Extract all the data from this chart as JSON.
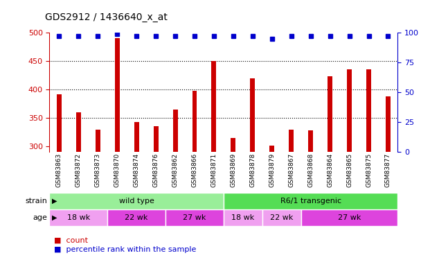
{
  "title": "GDS2912 / 1436640_x_at",
  "samples": [
    "GSM83863",
    "GSM83872",
    "GSM83873",
    "GSM83870",
    "GSM83874",
    "GSM83876",
    "GSM83862",
    "GSM83866",
    "GSM83871",
    "GSM83869",
    "GSM83878",
    "GSM83879",
    "GSM83867",
    "GSM83868",
    "GSM83864",
    "GSM83865",
    "GSM83875",
    "GSM83877"
  ],
  "counts": [
    392,
    360,
    330,
    490,
    343,
    335,
    365,
    398,
    450,
    315,
    420,
    302,
    330,
    328,
    423,
    435,
    435,
    388
  ],
  "percentile_ranks": [
    97,
    97,
    97,
    99,
    97,
    97,
    97,
    97,
    97,
    97,
    97,
    95,
    97,
    97,
    97,
    97,
    97,
    97
  ],
  "bar_color": "#cc0000",
  "dot_color": "#0000cc",
  "ylim_left": [
    290,
    500
  ],
  "ylim_right": [
    0,
    100
  ],
  "yticks_left": [
    300,
    350,
    400,
    450,
    500
  ],
  "yticks_right": [
    0,
    25,
    50,
    75,
    100
  ],
  "grid_values": [
    350,
    400,
    450
  ],
  "bar_width": 0.25,
  "strain_groups": [
    {
      "label": "wild type",
      "start": 0,
      "end": 9,
      "color": "#99ee99"
    },
    {
      "label": "R6/1 transgenic",
      "start": 9,
      "end": 18,
      "color": "#55dd55"
    }
  ],
  "age_groups": [
    {
      "label": "18 wk",
      "start": 0,
      "end": 3,
      "color": "#f0a0f0"
    },
    {
      "label": "22 wk",
      "start": 3,
      "end": 6,
      "color": "#dd44dd"
    },
    {
      "label": "27 wk",
      "start": 6,
      "end": 9,
      "color": "#dd44dd"
    },
    {
      "label": "18 wk",
      "start": 9,
      "end": 11,
      "color": "#f0a0f0"
    },
    {
      "label": "22 wk",
      "start": 11,
      "end": 13,
      "color": "#f0a0f0"
    },
    {
      "label": "27 wk",
      "start": 13,
      "end": 18,
      "color": "#dd44dd"
    }
  ],
  "axis_color_left": "#cc0000",
  "axis_color_right": "#0000cc",
  "background_color": "#ffffff",
  "plot_bg_color": "#ffffff",
  "label_row_color": "#cccccc",
  "grid_color": "#000000",
  "grid_linestyle": ":",
  "grid_linewidth": 0.8
}
